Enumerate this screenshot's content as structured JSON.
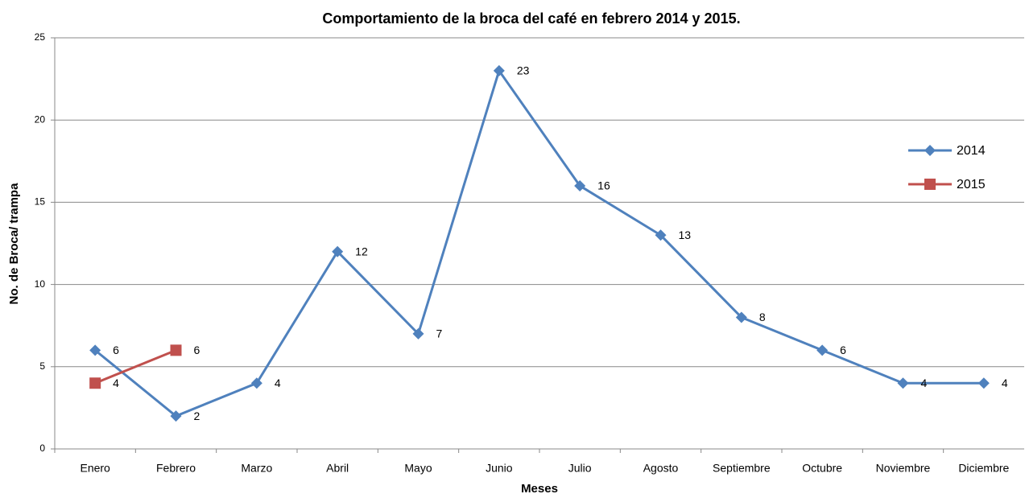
{
  "chart_data": {
    "type": "line",
    "title": "Comportamiento de la broca del café en febrero 2014 y 2015.",
    "x_label": "Meses",
    "y_label": "No. de Broca/ trampa",
    "categories": [
      "Enero",
      "Febrero",
      "Marzo",
      "Abril",
      "Mayo",
      "Junio",
      "Julio",
      "Agosto",
      "Septiembre",
      "Octubre",
      "Noviembre",
      "Diciembre"
    ],
    "series": [
      {
        "name": "2014",
        "color": "#4f81bd",
        "marker": "diamond",
        "values": [
          6,
          2,
          4,
          12,
          7,
          23,
          16,
          13,
          8,
          6,
          4,
          4
        ]
      },
      {
        "name": "2015",
        "color": "#c0504d",
        "marker": "square",
        "values": [
          4,
          6,
          null,
          null,
          null,
          null,
          null,
          null,
          null,
          null,
          null,
          null
        ]
      }
    ],
    "ylim": [
      0,
      25
    ],
    "yticks": [
      0,
      5,
      10,
      15,
      20,
      25
    ],
    "grid": true,
    "legend": "right"
  }
}
